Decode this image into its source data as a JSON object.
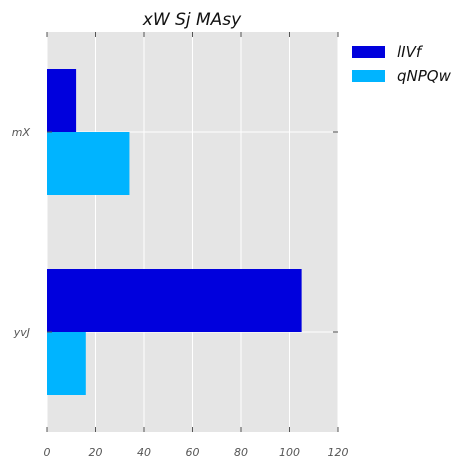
{
  "chart_data": {
    "type": "bar",
    "orientation": "horizontal",
    "title": "xW Sj MAsy",
    "xlabel": "",
    "ylabel": "",
    "categories": [
      "mX",
      "yvJ"
    ],
    "series": [
      {
        "name": "lIVf",
        "values": [
          12,
          105
        ],
        "color": "#0000dd"
      },
      {
        "name": "qNPQw",
        "values": [
          34,
          16
        ],
        "color": "#00b4ff"
      }
    ],
    "xlim": [
      0,
      120
    ],
    "xticks": [
      0,
      20,
      40,
      60,
      80,
      100,
      120
    ],
    "grid": true,
    "legend_position": "outside-top-right",
    "background_color": "#e5e5e5",
    "grid_color": "#ffffff"
  }
}
